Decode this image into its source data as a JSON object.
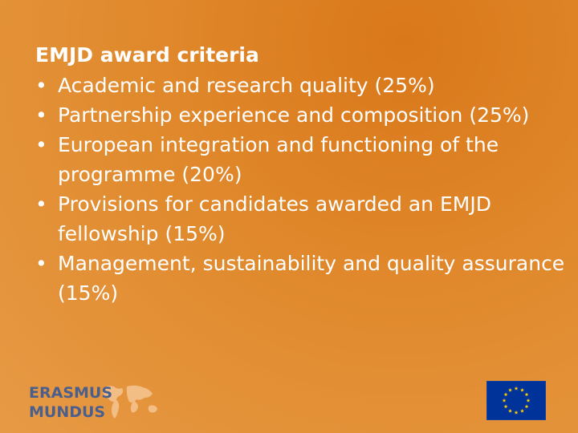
{
  "slide": {
    "title": "EMJD award criteria",
    "bullet_glyph": "•",
    "bullets": [
      "Academic and research quality (25%)",
      "Partnership experience and composition (25%)",
      "European integration and functioning of the programme (20%)",
      "Provisions for candidates awarded an EMJD fellowship (15%)",
      "Management, sustainability and quality assurance (15%)"
    ]
  },
  "logos": {
    "erasmus_line1": "ERASMUS",
    "erasmus_line2": "MUNDUS",
    "erasmus_icon": "world-map-icon",
    "eu_icon": "eu-flag-icon"
  },
  "colors": {
    "background": "#e0892c",
    "text": "#ffffff",
    "erasmus_blue": "#4a5f8c",
    "eu_blue": "#003399",
    "eu_star": "#ffcc00"
  }
}
